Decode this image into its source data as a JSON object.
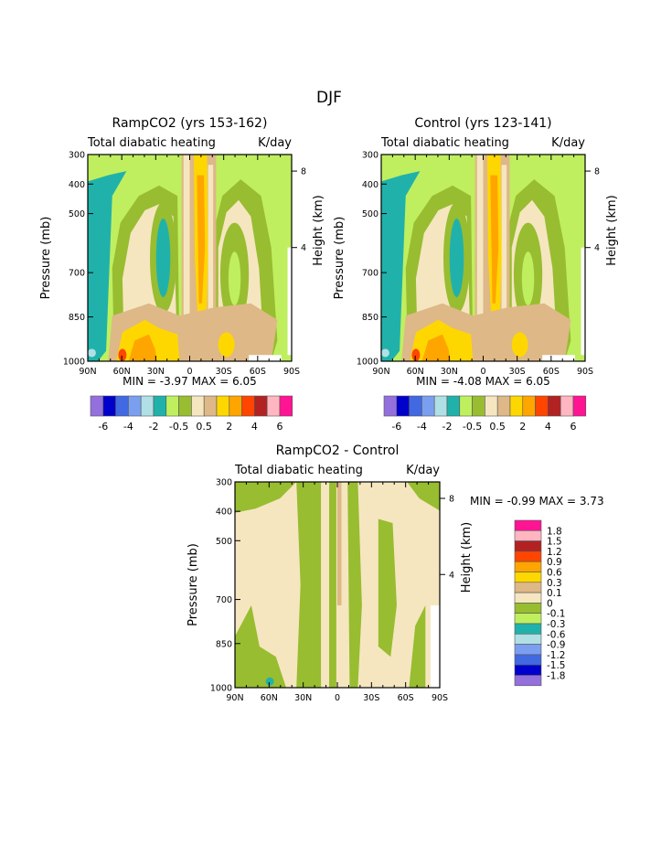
{
  "chart_data": {
    "type": "heatmap",
    "title": "DJF",
    "palette": [
      "#9370db",
      "#0000cd",
      "#4169e1",
      "#7b9ff0",
      "#b0e0e6",
      "#20b2aa",
      "#bfef5f",
      "#98bd30",
      "#f5e6c0",
      "#deb887",
      "#ffd700",
      "#ffa500",
      "#ff4500",
      "#b22222",
      "#ffb6c1",
      "#ff1493"
    ],
    "panels": [
      {
        "title": "RampCO2 (yrs 153-162)",
        "left_string": "Total diabatic heating",
        "right_string": "K/day",
        "ylabel": "Pressure (mb)",
        "ylabel_right": "Height (km)",
        "xticks": [
          "90N",
          "60N",
          "30N",
          "0",
          "30S",
          "60S",
          "90S"
        ],
        "yticks": [
          "300",
          "400",
          "500",
          "700",
          "850",
          "1000"
        ],
        "ytick_values": [
          300,
          400,
          500,
          700,
          850,
          1000
        ],
        "height_ticks": [
          "8",
          "4"
        ],
        "ylim": [
          1000,
          300
        ],
        "min_label": "MIN =",
        "min": "-3.97",
        "max_label": "MAX =",
        "max": "6.05",
        "colorbar_labels": [
          "-6",
          "-4",
          "-2",
          "-0.5",
          "0.5",
          "2",
          "4",
          "6"
        ],
        "field": "base"
      },
      {
        "title": "Control (yrs 123-141)",
        "left_string": "Total diabatic heating",
        "right_string": "K/day",
        "ylabel": "Pressure (mb)",
        "ylabel_right": "Height (km)",
        "xticks": [
          "90N",
          "60N",
          "30N",
          "0",
          "30S",
          "60S",
          "90S"
        ],
        "yticks": [
          "300",
          "400",
          "500",
          "700",
          "850",
          "1000"
        ],
        "ytick_values": [
          300,
          400,
          500,
          700,
          850,
          1000
        ],
        "height_ticks": [
          "8",
          "4"
        ],
        "ylim": [
          1000,
          300
        ],
        "min_label": "MIN =",
        "min": "-4.08",
        "max_label": "MAX =",
        "max": "6.05",
        "colorbar_labels": [
          "-6",
          "-4",
          "-2",
          "-0.5",
          "0.5",
          "2",
          "4",
          "6"
        ],
        "field": "base"
      },
      {
        "title": "RampCO2 - Control",
        "left_string": "Total diabatic heating",
        "right_string": "K/day",
        "ylabel": "Pressure (mb)",
        "ylabel_right": "Height (km)",
        "xticks": [
          "90N",
          "60N",
          "30N",
          "0",
          "30S",
          "60S",
          "90S"
        ],
        "yticks": [
          "300",
          "400",
          "500",
          "700",
          "850",
          "1000"
        ],
        "ytick_values": [
          300,
          400,
          500,
          700,
          850,
          1000
        ],
        "height_ticks": [
          "8",
          "4"
        ],
        "ylim": [
          1000,
          300
        ],
        "min_label": "MIN =",
        "min": "-0.99",
        "max_label": "MAX =",
        "max": "3.73",
        "colorbar_labels": [
          "1.8",
          "1.5",
          "1.2",
          "0.9",
          "0.6",
          "0.3",
          "0.1",
          "0",
          "-0.1",
          "-0.3",
          "-0.6",
          "-0.9",
          "-1.2",
          "-1.5",
          "-1.8"
        ],
        "field": "diff"
      }
    ]
  }
}
